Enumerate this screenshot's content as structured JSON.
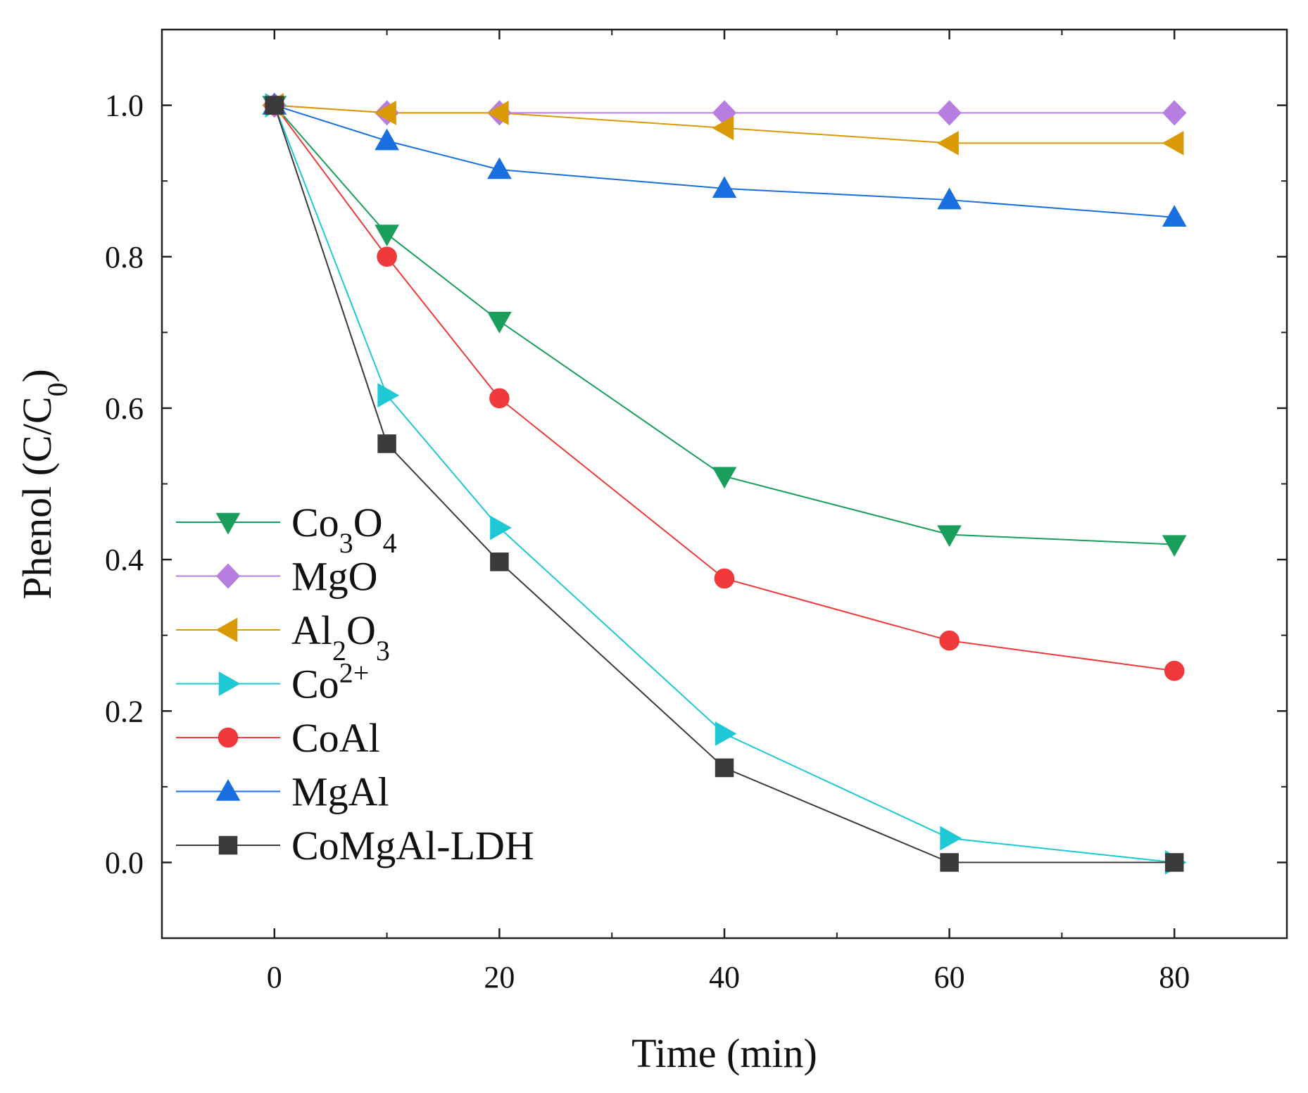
{
  "chart_data": {
    "type": "line",
    "title": "",
    "xlabel": "Time (min)",
    "ylabel": {
      "main": "Phenol (C/C",
      "sub": "0",
      "end": ")"
    },
    "xlim": [
      -10,
      90
    ],
    "ylim": [
      -0.1,
      1.1
    ],
    "xticks": [
      "0",
      "20",
      "40",
      "60",
      "80"
    ],
    "yticks": [
      "0.0",
      "0.2",
      "0.4",
      "0.6",
      "0.8",
      "1.0"
    ],
    "grid": false,
    "legend_position": "left",
    "series": [
      {
        "name": "Co3O4",
        "label_parts": [
          [
            "Co",
            ""
          ],
          [
            "3",
            "sub"
          ],
          [
            "O",
            ""
          ],
          [
            "4",
            "sub"
          ]
        ],
        "color": "#1a9e5c",
        "marker": "triangle-down",
        "x": [
          0,
          10,
          20,
          40,
          60,
          80
        ],
        "y": [
          1.0,
          0.83,
          0.715,
          0.51,
          0.433,
          0.42
        ]
      },
      {
        "name": "MgO",
        "label_parts": [
          [
            "MgO",
            ""
          ]
        ],
        "color": "#b77de0",
        "marker": "diamond",
        "x": [
          0,
          10,
          20,
          40,
          60,
          80
        ],
        "y": [
          1.0,
          0.99,
          0.99,
          0.99,
          0.99,
          0.99
        ]
      },
      {
        "name": "Al2O3",
        "label_parts": [
          [
            "Al",
            ""
          ],
          [
            "2",
            "sub"
          ],
          [
            "O",
            ""
          ],
          [
            "3",
            "sub"
          ]
        ],
        "color": "#d99a06",
        "marker": "triangle-left",
        "x": [
          0,
          10,
          20,
          40,
          60,
          80
        ],
        "y": [
          1.0,
          0.99,
          0.99,
          0.97,
          0.95,
          0.95
        ]
      },
      {
        "name": "Co2+",
        "label_parts": [
          [
            "Co",
            ""
          ],
          [
            "2+",
            "sup"
          ]
        ],
        "color": "#1ec8d4",
        "marker": "triangle-right",
        "x": [
          0,
          10,
          20,
          40,
          60,
          80
        ],
        "y": [
          1.0,
          0.617,
          0.442,
          0.17,
          0.032,
          0.0
        ]
      },
      {
        "name": "CoAl",
        "label_parts": [
          [
            "CoAl",
            ""
          ]
        ],
        "color": "#f0393a",
        "marker": "circle",
        "x": [
          0,
          10,
          20,
          40,
          60,
          80
        ],
        "y": [
          1.0,
          0.8,
          0.613,
          0.375,
          0.293,
          0.253
        ]
      },
      {
        "name": "MgAl",
        "label_parts": [
          [
            "MgAl",
            ""
          ]
        ],
        "color": "#1a6fe0",
        "marker": "triangle-up",
        "x": [
          0,
          10,
          20,
          40,
          60,
          80
        ],
        "y": [
          1.0,
          0.953,
          0.915,
          0.89,
          0.875,
          0.852
        ]
      },
      {
        "name": "CoMgAl-LDH",
        "label_parts": [
          [
            "CoMgAl-LDH",
            ""
          ]
        ],
        "color": "#3a3a3a",
        "marker": "square",
        "x": [
          0,
          10,
          20,
          40,
          60,
          80
        ],
        "y": [
          1.0,
          0.553,
          0.397,
          0.125,
          0.0,
          0.0
        ]
      }
    ]
  }
}
